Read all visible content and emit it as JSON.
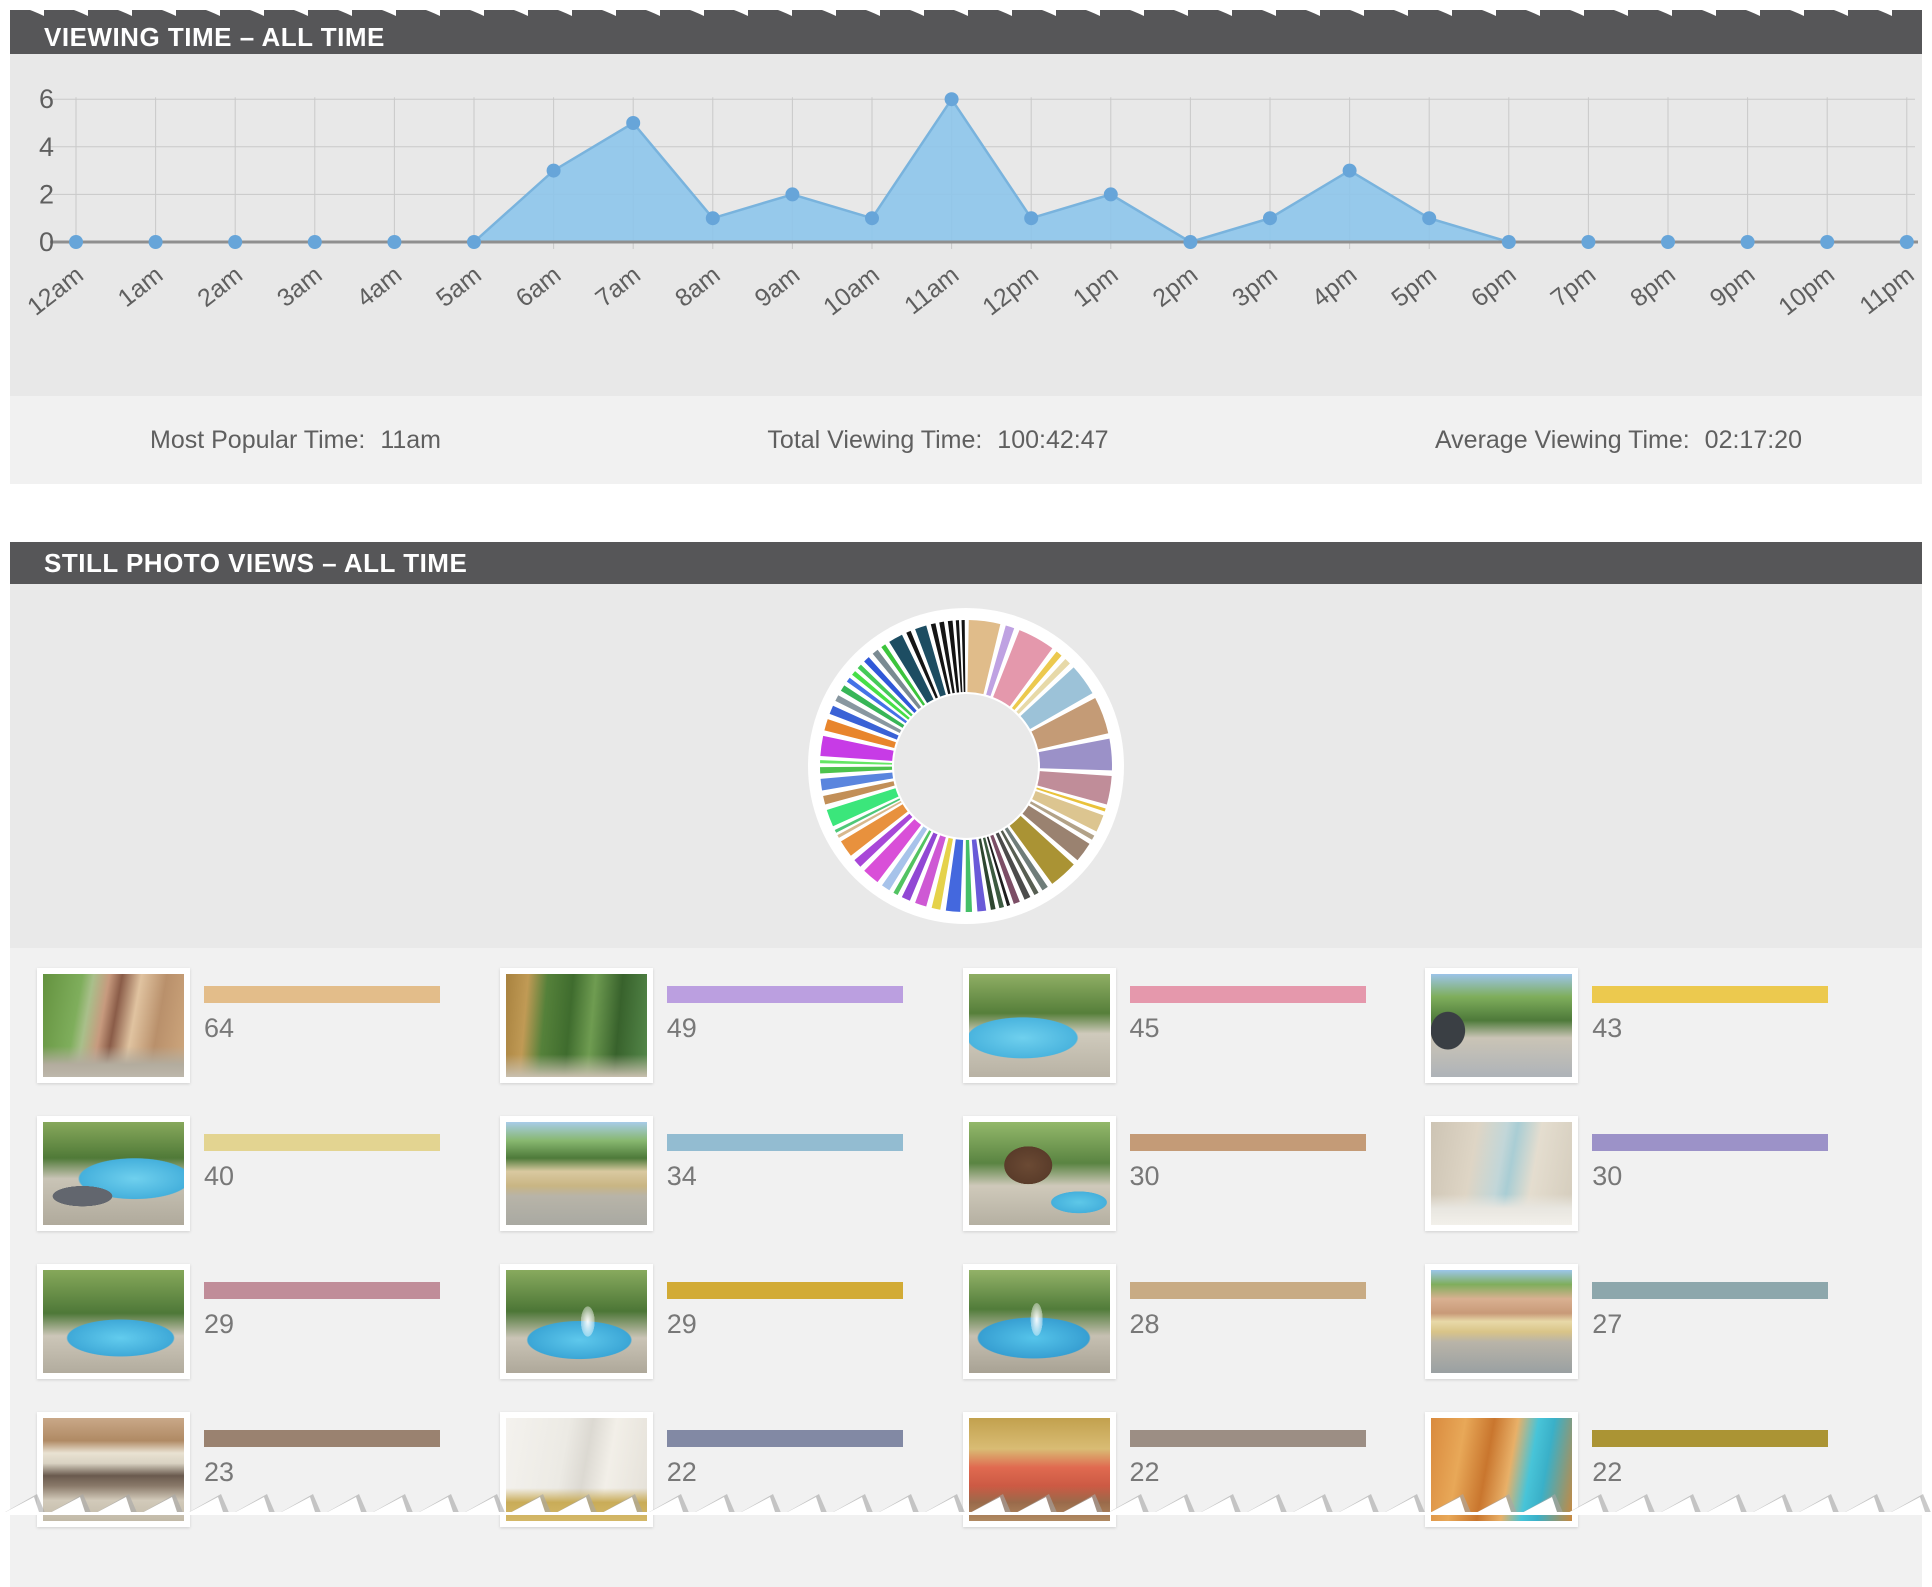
{
  "viewing_time": {
    "header": "VIEWING TIME – ALL TIME",
    "stats": [
      {
        "label": "Most Popular Time:",
        "value": "11am"
      },
      {
        "label": "Total Viewing Time:",
        "value": "100:42:47"
      },
      {
        "label": "Average Viewing Time:",
        "value": "02:17:20"
      }
    ]
  },
  "still_photo_views": {
    "header": "STILL PHOTO VIEWS – ALL TIME",
    "items": [
      {
        "views": "64",
        "color": "#e3bd8a",
        "photo": "front-entrance"
      },
      {
        "views": "49",
        "color": "#bb9fe0",
        "photo": "side-path"
      },
      {
        "views": "45",
        "color": "#e598ac",
        "photo": "pool-trees"
      },
      {
        "views": "43",
        "color": "#ecc94e",
        "photo": "patio-grill"
      },
      {
        "views": "40",
        "color": "#e3d491",
        "photo": "pool-loungers"
      },
      {
        "views": "34",
        "color": "#93bcd1",
        "photo": "garage-driveway"
      },
      {
        "views": "30",
        "color": "#c49b77",
        "photo": "shed-pool"
      },
      {
        "views": "30",
        "color": "#9c92c8",
        "photo": "bathroom"
      },
      {
        "views": "29",
        "color": "#c08d99",
        "photo": "pool-curve"
      },
      {
        "views": "29",
        "color": "#d2ab36",
        "photo": "pool-fountain"
      },
      {
        "views": "28",
        "color": "#c8ab84",
        "photo": "pool-fountain2"
      },
      {
        "views": "27",
        "color": "#8da7ac",
        "photo": "garage-house"
      },
      {
        "views": "23",
        "color": "#9a8270",
        "photo": "patio-dining"
      },
      {
        "views": "22",
        "color": "#8289a4",
        "photo": "kitchen"
      },
      {
        "views": "22",
        "color": "#9c8e84",
        "photo": "dining-room"
      },
      {
        "views": "22",
        "color": "#ab9434",
        "photo": "sauna"
      }
    ]
  },
  "chart_data": [
    {
      "type": "area",
      "title": "VIEWING TIME – ALL TIME",
      "categories": [
        "12am",
        "1am",
        "2am",
        "3am",
        "4am",
        "5am",
        "6am",
        "7am",
        "8am",
        "9am",
        "10am",
        "11am",
        "12pm",
        "1pm",
        "2pm",
        "3pm",
        "4pm",
        "5pm",
        "6pm",
        "7pm",
        "8pm",
        "9pm",
        "10pm",
        "11pm"
      ],
      "values": [
        0,
        0,
        0,
        0,
        0,
        0,
        3,
        5,
        1,
        2,
        1,
        6,
        1,
        2,
        0,
        1,
        3,
        1,
        0,
        0,
        0,
        0,
        0,
        0
      ],
      "xlabel": "",
      "ylabel": "",
      "ylim": [
        0,
        6
      ],
      "yticks": [
        0,
        2,
        4,
        6
      ],
      "grid": true,
      "area_fill": "#8ec6ea",
      "line_color": "#79b3dd",
      "dot_color": "#67a5d9",
      "grid_color": "#c9c9c9",
      "baseline_color": "#8f8f8f",
      "label_color": "#5f5f5f"
    },
    {
      "type": "donut",
      "title": "STILL PHOTO VIEWS – ALL TIME",
      "note": "segment weights estimated from chart; clockwise from top",
      "hole_color": "#e9e9e9",
      "backing_color": "#ffffff",
      "segments": [
        [
          13,
          "#e0bc8a"
        ],
        [
          5,
          "#bfa2e2"
        ],
        [
          15,
          "#e498ac"
        ],
        [
          4,
          "#ecc94e"
        ],
        [
          4,
          "#e7d9a8"
        ],
        [
          13,
          "#9cc2d8"
        ],
        [
          15,
          "#c49b76"
        ],
        [
          13,
          "#9b91c8"
        ],
        [
          12,
          "#c08d99"
        ],
        [
          2,
          "#eac23a"
        ],
        [
          8,
          "#dcc590"
        ],
        [
          3,
          "#b2a288"
        ],
        [
          9,
          "#9a8270"
        ],
        [
          12,
          "#aa9334"
        ],
        [
          4,
          "#6f7d7a"
        ],
        [
          3,
          "#575e52"
        ],
        [
          4,
          "#4b4b4b"
        ],
        [
          4,
          "#7c4e66"
        ],
        [
          2,
          "#1e1e1e"
        ],
        [
          3,
          "#3c5a40"
        ],
        [
          3,
          "#2e4630"
        ],
        [
          5,
          "#6a5ad8"
        ],
        [
          4,
          "#45bf68"
        ],
        [
          7,
          "#4468de"
        ],
        [
          5,
          "#e5d24a"
        ],
        [
          6,
          "#ce59d4"
        ],
        [
          5,
          "#9147d4"
        ],
        [
          3,
          "#52c362"
        ],
        [
          5,
          "#a7c3ea"
        ],
        [
          8,
          "#d94fd8"
        ],
        [
          5,
          "#a847d8"
        ],
        [
          8,
          "#e8913d"
        ],
        [
          2,
          "#d7b88e"
        ],
        [
          2,
          "#4fc878"
        ],
        [
          8,
          "#3be67b"
        ],
        [
          5,
          "#c28f58"
        ],
        [
          6,
          "#5a85de"
        ],
        [
          4,
          "#4dc34d"
        ],
        [
          2,
          "#65e665"
        ],
        [
          9,
          "#c73be6"
        ],
        [
          6,
          "#e8852c"
        ],
        [
          5,
          "#3a62d6"
        ],
        [
          4,
          "#8897a0"
        ],
        [
          4,
          "#37b657"
        ],
        [
          3,
          "#4472e6"
        ],
        [
          3,
          "#47df47"
        ],
        [
          3,
          "#44ca58"
        ],
        [
          4,
          "#3058d8"
        ],
        [
          4,
          "#7a8a92"
        ],
        [
          3,
          "#3cc43c"
        ],
        [
          7,
          "#1d4d62"
        ],
        [
          3,
          "#151515"
        ],
        [
          6,
          "#1d4d62"
        ],
        [
          3,
          "#141414"
        ],
        [
          3,
          "#161616"
        ],
        [
          3,
          "#121212"
        ],
        [
          2,
          "#151515"
        ],
        [
          2,
          "#131313"
        ]
      ]
    }
  ]
}
